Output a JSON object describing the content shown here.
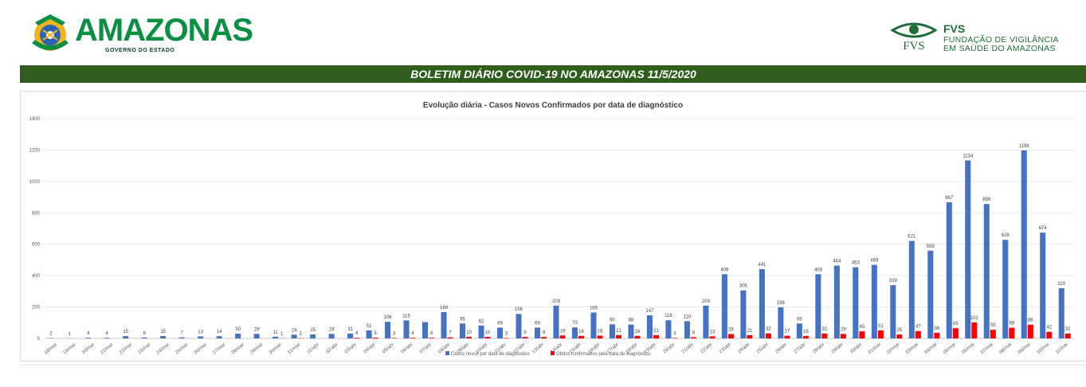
{
  "header": {
    "brand": "AMAZONAS",
    "brand_sub": "GOVERNO DO ESTADO",
    "fvs_title": "FVS",
    "fvs_line1": "FUNDAÇÃO DE VIGILÂNCIA",
    "fvs_line2": "EM SAÚDE DO AMAZONAS",
    "fvs_mark": "FVS"
  },
  "banner": {
    "title": "BOLETIM DIÁRIO COVID-19 NO AMAZONAS 11/5/2020"
  },
  "colors": {
    "cases": "#4472c4",
    "deaths": "#ff0000",
    "banner": "#2f5d1c",
    "brand": "#0a8f43"
  },
  "chart_data": {
    "type": "bar",
    "title": "Evolução diária - Casos Novos Confirmados por data de diagnóstico",
    "ylim": [
      0,
      1400
    ],
    "yticks": [
      0,
      200,
      400,
      600,
      800,
      1000,
      1200,
      1400
    ],
    "grid": true,
    "legend_position": "bottom",
    "categories": [
      "18/mar",
      "19/mar",
      "20/mar",
      "21/mar",
      "22/mar",
      "23/mar",
      "24/mar",
      "25/mar",
      "26/mar",
      "27/mar",
      "28/mar",
      "29/mar",
      "30/mar",
      "31/mar",
      "01/abr",
      "02/abr",
      "03/abr",
      "04/abr",
      "05/abr",
      "06/abr",
      "07/abr",
      "08/abr",
      "09/abr",
      "10/abr",
      "11/abr",
      "12/abr",
      "13/abr",
      "14/abr",
      "15/abr",
      "16/abr",
      "17/abr",
      "18/abr",
      "19/abr",
      "20/abr",
      "21/abr",
      "22/abr",
      "23/abr",
      "24/abr",
      "25/abr",
      "26/abr",
      "27/abr",
      "28/abr",
      "29/abr",
      "30/abr",
      "01/mai",
      "02/mai",
      "03/mai",
      "04/mai",
      "05/mai",
      "06/mai",
      "07/mai",
      "08/mai",
      "09/mai",
      "10/mai",
      "11/mai"
    ],
    "series": [
      {
        "name": "Casos novos por data de diagnóstico",
        "values": [
          2,
          1,
          4,
          4,
          15,
          6,
          15,
          7,
          13,
          14,
          30,
          29,
          11,
          24,
          25,
          29,
          31,
          51,
          106,
          115,
          104,
          168,
          95,
          82,
          69,
          156,
          69,
          209,
          70,
          165,
          90,
          88,
          147,
          116,
          110,
          209,
          409,
          306,
          441,
          198,
          95,
          409,
          464,
          453,
          469,
          339,
          621,
          559,
          867,
          1134,
          856,
          628,
          1198,
          674,
          320
        ],
        "labels": [
          "2",
          "1",
          "4",
          "4",
          "15",
          "6",
          "15",
          "7",
          "13",
          "14",
          "30",
          "29",
          "11",
          "24",
          "25",
          "29",
          "31",
          "51",
          "106",
          "115",
          "",
          "168",
          "95",
          "82",
          "69",
          "156",
          "69",
          "209",
          "70",
          "165",
          "90",
          "88",
          "147",
          "116",
          "110",
          "209",
          "409",
          "306",
          "441",
          "198",
          "95",
          "409",
          "464",
          "453",
          "469",
          "339",
          "621",
          "559",
          "867",
          "1134",
          "856",
          "628",
          "1198",
          "674",
          "320"
        ]
      },
      {
        "name": "Óbitos confirmados pela data de diagnóstico",
        "values": [
          0,
          0,
          0,
          0,
          0,
          0,
          0,
          0,
          0,
          0,
          0,
          0,
          1,
          2,
          0,
          0,
          4,
          5,
          3,
          4,
          4,
          7,
          10,
          10,
          3,
          9,
          9,
          19,
          16,
          18,
          21,
          16,
          21,
          3,
          8,
          13,
          28,
          21,
          32,
          17,
          16,
          31,
          29,
          45,
          51,
          25,
          47,
          36,
          65,
          102,
          55,
          68,
          88,
          42,
          31
        ],
        "labels": [
          "",
          "",
          "",
          "",
          "",
          "",
          "",
          "",
          "",
          "",
          "",
          "",
          "1",
          "2",
          "",
          "",
          "4",
          "5",
          "3",
          "4",
          "4",
          "7",
          "10",
          "10",
          "3",
          "9",
          "9",
          "19",
          "16",
          "18",
          "21",
          "16",
          "21",
          "3",
          "8",
          "13",
          "28",
          "21",
          "32",
          "17",
          "16",
          "31",
          "29",
          "45",
          "51",
          "25",
          "47",
          "36",
          "65",
          "102",
          "55",
          "68",
          "88",
          "42",
          "31"
        ]
      }
    ]
  }
}
